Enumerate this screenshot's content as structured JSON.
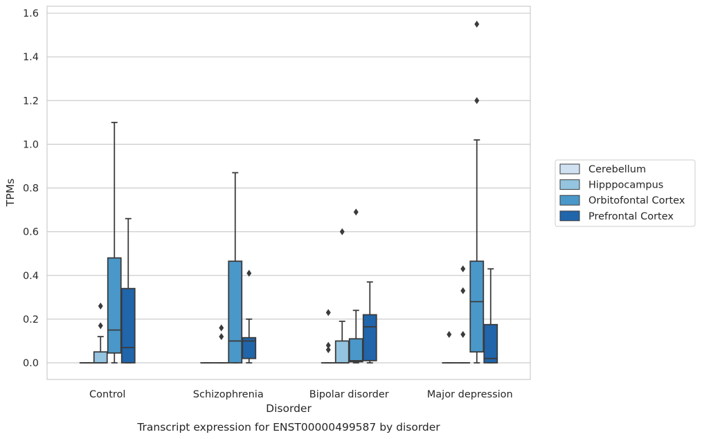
{
  "chart_data": {
    "type": "box",
    "title": "Transcript expression for ENST00000499587 by disorder",
    "xlabel": "Disorder",
    "ylabel": "TPMs",
    "ylim": [
      -0.075,
      1.63
    ],
    "yticks": [
      "0.0",
      "0.2",
      "0.4",
      "0.6",
      "0.8",
      "1.0",
      "1.2",
      "1.4",
      "1.6"
    ],
    "grid": true,
    "legend_position": "right",
    "categories": [
      "Control",
      "Schizophrenia",
      "Bipolar disorder",
      "Major depression"
    ],
    "series": [
      {
        "name": "Cerebellum",
        "color": "#d0e1f2",
        "boxes": [
          {
            "min": 0,
            "q1": 0,
            "median": 0,
            "q3": 0,
            "max": 0,
            "outliers": []
          },
          {
            "min": 0,
            "q1": 0,
            "median": 0,
            "q3": 0,
            "max": 0,
            "outliers": []
          },
          {
            "min": 0,
            "q1": 0,
            "median": 0,
            "q3": 0,
            "max": 0,
            "outliers": [
              0.06,
              0.08,
              0.23
            ]
          },
          {
            "min": 0,
            "q1": 0,
            "median": 0,
            "q3": 0,
            "max": 0,
            "outliers": [
              0.13
            ]
          }
        ]
      },
      {
        "name": "Hipppocampus",
        "color": "#94c4df",
        "boxes": [
          {
            "min": 0,
            "q1": 0,
            "median": 0,
            "q3": 0.05,
            "max": 0.12,
            "outliers": [
              0.17,
              0.26
            ]
          },
          {
            "min": 0,
            "q1": 0,
            "median": 0,
            "q3": 0,
            "max": 0,
            "outliers": [
              0.12,
              0.16
            ]
          },
          {
            "min": 0,
            "q1": 0,
            "median": 0,
            "q3": 0.1,
            "max": 0.19,
            "outliers": [
              0.6
            ]
          },
          {
            "min": 0,
            "q1": 0,
            "median": 0,
            "q3": 0,
            "max": 0,
            "outliers": [
              0.13,
              0.33,
              0.43
            ]
          }
        ]
      },
      {
        "name": "Orbitofontal Cortex",
        "color": "#4a98c9",
        "boxes": [
          {
            "min": 0,
            "q1": 0.045,
            "median": 0.15,
            "q3": 0.48,
            "max": 1.1,
            "outliers": []
          },
          {
            "min": 0,
            "q1": 0,
            "median": 0.1,
            "q3": 0.465,
            "max": 0.87,
            "outliers": []
          },
          {
            "min": 0,
            "q1": 0.005,
            "median": 0.01,
            "q3": 0.11,
            "max": 0.24,
            "outliers": [
              0.69
            ]
          },
          {
            "min": 0,
            "q1": 0.05,
            "median": 0.28,
            "q3": 0.465,
            "max": 1.02,
            "outliers": [
              1.2,
              1.55
            ]
          }
        ]
      },
      {
        "name": "Prefrontal Cortex",
        "color": "#2165ab",
        "boxes": [
          {
            "min": 0,
            "q1": 0,
            "median": 0.07,
            "q3": 0.34,
            "max": 0.66,
            "outliers": []
          },
          {
            "min": 0,
            "q1": 0.02,
            "median": 0.1,
            "q3": 0.115,
            "max": 0.2,
            "outliers": [
              0.41
            ]
          },
          {
            "min": 0,
            "q1": 0.01,
            "median": 0.165,
            "q3": 0.22,
            "max": 0.37,
            "outliers": []
          },
          {
            "min": 0,
            "q1": 0,
            "median": 0.02,
            "q3": 0.175,
            "max": 0.43,
            "outliers": []
          }
        ]
      }
    ]
  }
}
